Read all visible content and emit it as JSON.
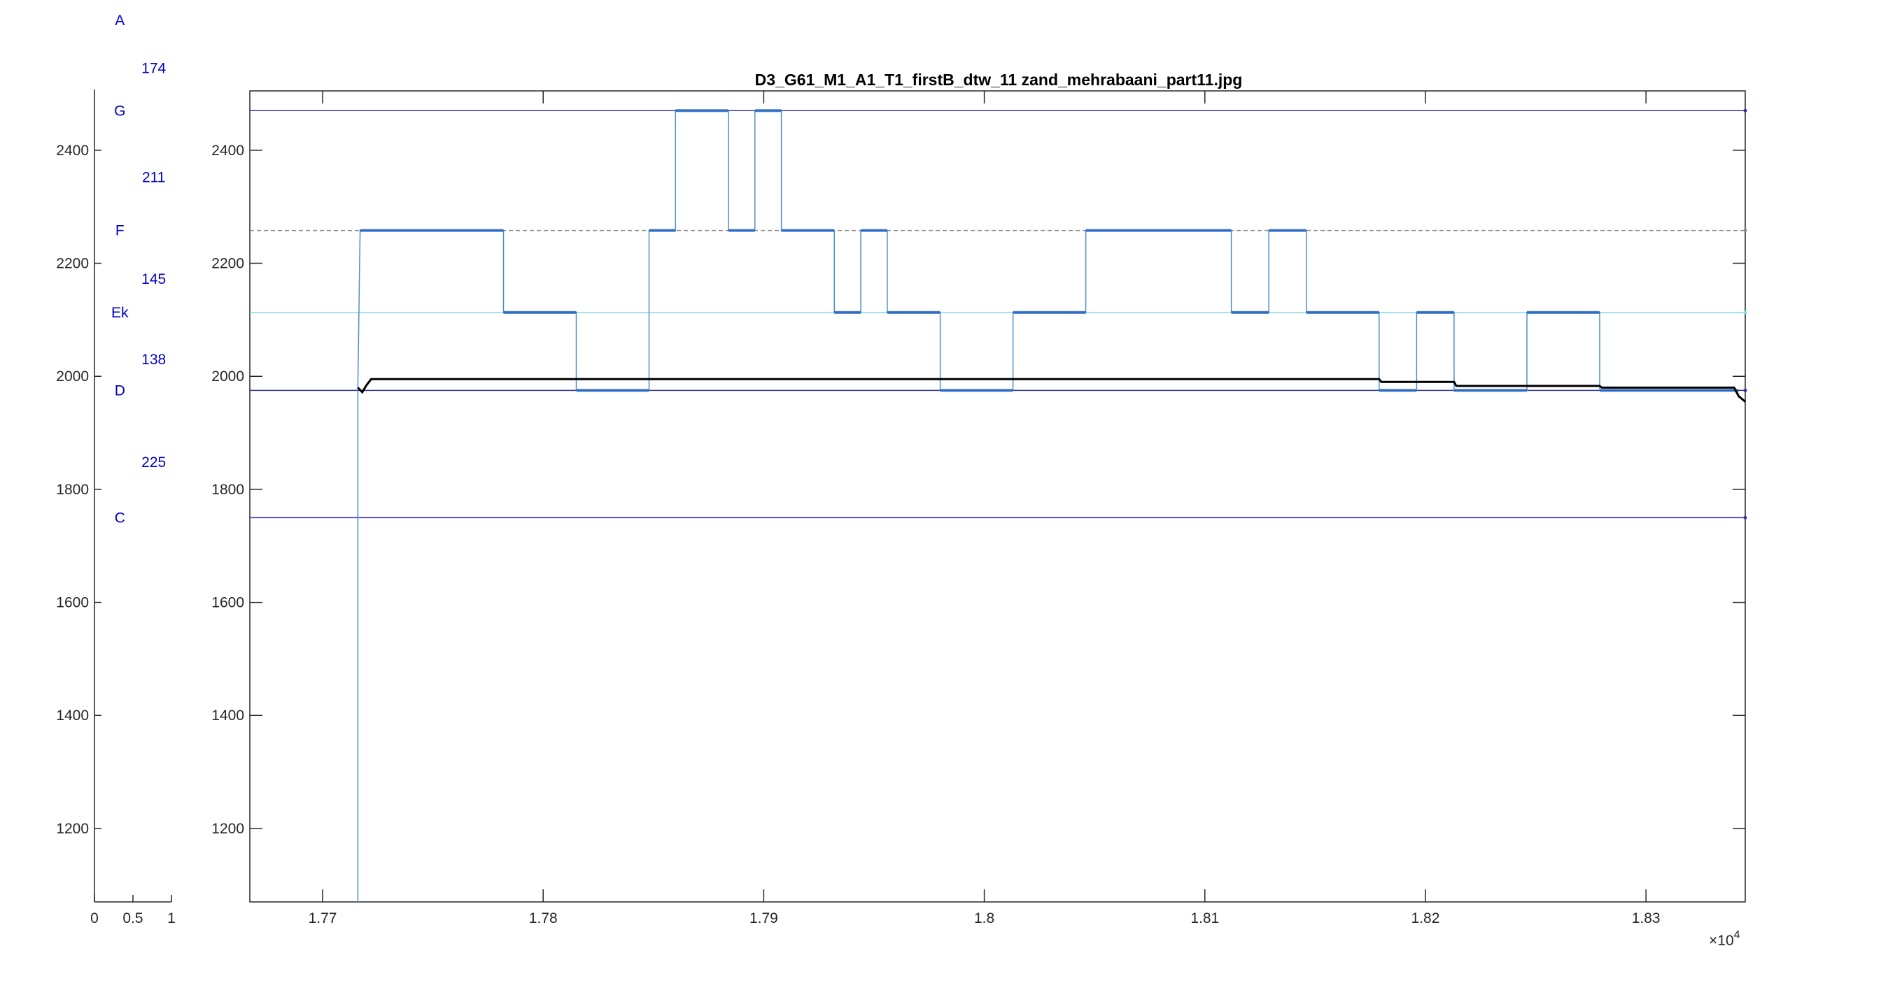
{
  "chart_data": [
    {
      "type": "line",
      "title": "",
      "xlabel": "",
      "ylabel": "",
      "xlim": [
        0,
        1
      ],
      "ylim": [
        1070,
        2505
      ],
      "x_ticks": [
        0,
        0.5,
        1
      ],
      "x_tick_labels": [
        "0",
        "0.5",
        "1"
      ],
      "y_ticks": [
        1200,
        1400,
        1600,
        1800,
        2000,
        2200,
        2400
      ],
      "y_tick_labels": [
        "1200",
        "1400",
        "1600",
        "1800",
        "2000",
        "2200",
        "2400"
      ],
      "grid": false,
      "note_labels": [
        {
          "text": "A",
          "x": 0.33,
          "y": 2630
        },
        {
          "text": "G",
          "x": 0.33,
          "y": 2470
        },
        {
          "text": "F",
          "x": 0.33,
          "y": 2258
        },
        {
          "text": "Ek",
          "x": 0.33,
          "y": 2113
        },
        {
          "text": "D",
          "x": 0.33,
          "y": 1975
        },
        {
          "text": "C",
          "x": 0.33,
          "y": 1750
        }
      ],
      "interval_labels": [
        {
          "text": "174",
          "x": 0.77,
          "y": 2545
        },
        {
          "text": "211",
          "x": 0.77,
          "y": 2352
        },
        {
          "text": "145",
          "x": 0.77,
          "y": 2172
        },
        {
          "text": "138",
          "x": 0.77,
          "y": 2030
        },
        {
          "text": "225",
          "x": 0.77,
          "y": 1848
        }
      ]
    },
    {
      "type": "line",
      "title": "D3_G61_M1_A1_T1_firstB_dtw_11 zand_mehrabaani_part11.jpg",
      "xlabel": "",
      "ylabel": "",
      "xlim": [
        17667,
        18345
      ],
      "ylim": [
        1070,
        2505
      ],
      "x_ticks": [
        17700,
        17800,
        17900,
        18000,
        18100,
        18200,
        18300
      ],
      "x_tick_labels": [
        "1.77",
        "1.78",
        "1.79",
        "1.8",
        "1.81",
        "1.82",
        "1.83"
      ],
      "x_exponent_label": "×10",
      "x_exponent_power": "4",
      "y_ticks": [
        1200,
        1400,
        1600,
        1800,
        2000,
        2200,
        2400
      ],
      "y_tick_labels": [
        "1200",
        "1400",
        "1600",
        "1800",
        "2000",
        "2200",
        "2400"
      ],
      "grid": false,
      "reference_lines": [
        {
          "y": 2470,
          "color": "#3333aa",
          "style": "solid"
        },
        {
          "y": 2258,
          "color": "#888888",
          "style": "dashed"
        },
        {
          "y": 2113,
          "color": "#7fdcec",
          "style": "solid"
        },
        {
          "y": 1975,
          "color": "#3333aa",
          "style": "solid"
        },
        {
          "y": 1750,
          "color": "#3333aa",
          "style": "solid"
        }
      ],
      "series": [
        {
          "color": "#4a90c8",
          "style": "step",
          "points": [
            [
              17716,
              1070
            ],
            [
              17716,
              1985
            ],
            [
              17717,
              2258
            ],
            [
              17782,
              2258
            ],
            [
              17782,
              2113
            ],
            [
              17815,
              2113
            ],
            [
              17815,
              1975
            ],
            [
              17848,
              1975
            ],
            [
              17848,
              2258
            ],
            [
              17860,
              2258
            ],
            [
              17860,
              2470
            ],
            [
              17884,
              2470
            ],
            [
              17884,
              2258
            ],
            [
              17896,
              2258
            ],
            [
              17896,
              2470
            ],
            [
              17908,
              2470
            ],
            [
              17908,
              2258
            ],
            [
              17932,
              2258
            ],
            [
              17932,
              2113
            ],
            [
              17944,
              2113
            ],
            [
              17944,
              2258
            ],
            [
              17956,
              2258
            ],
            [
              17956,
              2113
            ],
            [
              17980,
              2113
            ],
            [
              17980,
              1975
            ],
            [
              18013,
              1975
            ],
            [
              18013,
              2113
            ],
            [
              18046,
              2113
            ],
            [
              18046,
              2258
            ],
            [
              18112,
              2258
            ],
            [
              18112,
              2113
            ],
            [
              18129,
              2113
            ],
            [
              18129,
              2258
            ],
            [
              18146,
              2258
            ],
            [
              18146,
              2113
            ],
            [
              18179,
              2113
            ],
            [
              18179,
              1975
            ],
            [
              18196,
              1975
            ],
            [
              18196,
              2113
            ],
            [
              18213,
              2113
            ],
            [
              18213,
              1975
            ],
            [
              18246,
              1975
            ],
            [
              18246,
              2113
            ],
            [
              18279,
              2113
            ],
            [
              18279,
              1975
            ],
            [
              18342,
              1975
            ]
          ]
        },
        {
          "color": "#000000",
          "style": "line",
          "points": [
            [
              17716,
              1980
            ],
            [
              17718,
              1972
            ],
            [
              17720,
              1985
            ],
            [
              17722,
              1995
            ],
            [
              17760,
              1995
            ],
            [
              17850,
              1995
            ],
            [
              17950,
              1995
            ],
            [
              18050,
              1995
            ],
            [
              18179,
              1995
            ],
            [
              18180,
              1990
            ],
            [
              18213,
              1990
            ],
            [
              18214,
              1983
            ],
            [
              18279,
              1983
            ],
            [
              18280,
              1980
            ],
            [
              18340,
              1980
            ],
            [
              18342,
              1965
            ],
            [
              18345,
              1955
            ]
          ]
        }
      ]
    }
  ]
}
